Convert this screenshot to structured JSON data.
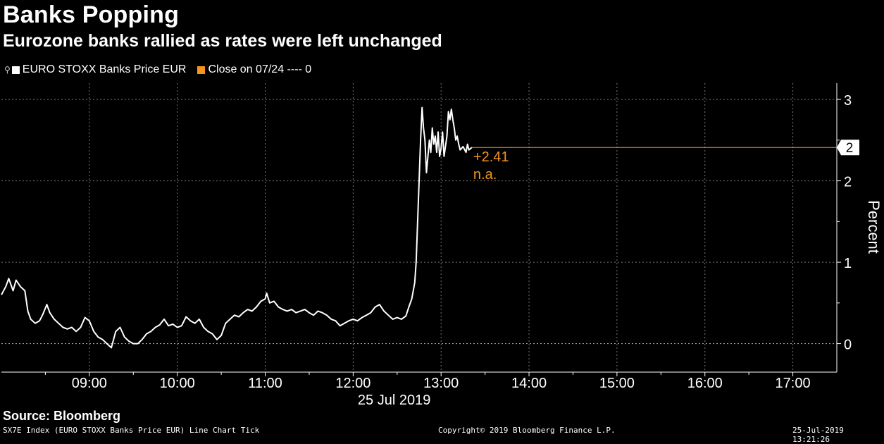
{
  "header": {
    "title": "Banks Popping",
    "subtitle": "Eurozone banks rallied as rates were left unchanged"
  },
  "legend": {
    "items": [
      {
        "label": "EURO STOXX Banks Price EUR",
        "color": "#ffffff"
      },
      {
        "label": "Close on 07/24 ---- 0",
        "color": "#f7941d"
      }
    ]
  },
  "footer": {
    "source": "Source: Bloomberg",
    "left": "SX7E Index (EURO STOXX Banks Price EUR) Line Chart  Tick",
    "center": "Copyright© 2019 Bloomberg Finance L.P.",
    "right": "25-Jul-2019 13:21:26"
  },
  "chart_data": {
    "type": "line",
    "ylabel": "Percent",
    "xlabel": "25 Jul 2019",
    "ylim": [
      -0.35,
      3.2
    ],
    "y_ticks": [
      "0",
      "1",
      "2",
      "3"
    ],
    "x_range": [
      "08:00",
      "17:30"
    ],
    "x_ticks": [
      "09:00",
      "10:00",
      "11:00",
      "12:00",
      "13:00",
      "14:00",
      "15:00",
      "16:00",
      "17:00"
    ],
    "grid": true,
    "legend_position": "top-left",
    "last_value_label": "+2.41",
    "last_value_badge": "2",
    "na_label": "n.a.",
    "series": [
      {
        "name": "EURO STOXX Banks Price EUR",
        "color": "#ffffff",
        "points": [
          [
            "08:00",
            0.6
          ],
          [
            "08:03",
            0.7
          ],
          [
            "08:05",
            0.8
          ],
          [
            "08:08",
            0.65
          ],
          [
            "08:10",
            0.78
          ],
          [
            "08:13",
            0.7
          ],
          [
            "08:16",
            0.65
          ],
          [
            "08:18",
            0.4
          ],
          [
            "08:20",
            0.3
          ],
          [
            "08:23",
            0.25
          ],
          [
            "08:26",
            0.28
          ],
          [
            "08:28",
            0.35
          ],
          [
            "08:31",
            0.48
          ],
          [
            "08:33",
            0.38
          ],
          [
            "08:36",
            0.3
          ],
          [
            "08:39",
            0.25
          ],
          [
            "08:42",
            0.2
          ],
          [
            "08:45",
            0.18
          ],
          [
            "08:48",
            0.2
          ],
          [
            "08:51",
            0.15
          ],
          [
            "08:54",
            0.2
          ],
          [
            "08:57",
            0.32
          ],
          [
            "09:00",
            0.28
          ],
          [
            "09:03",
            0.15
          ],
          [
            "09:06",
            0.08
          ],
          [
            "09:09",
            0.05
          ],
          [
            "09:12",
            0.0
          ],
          [
            "09:15",
            -0.05
          ],
          [
            "09:18",
            0.15
          ],
          [
            "09:21",
            0.2
          ],
          [
            "09:24",
            0.08
          ],
          [
            "09:27",
            0.03
          ],
          [
            "09:30",
            0.0
          ],
          [
            "09:33",
            0.0
          ],
          [
            "09:36",
            0.05
          ],
          [
            "09:39",
            0.12
          ],
          [
            "09:42",
            0.15
          ],
          [
            "09:45",
            0.2
          ],
          [
            "09:48",
            0.23
          ],
          [
            "09:51",
            0.3
          ],
          [
            "09:54",
            0.22
          ],
          [
            "09:57",
            0.24
          ],
          [
            "10:00",
            0.2
          ],
          [
            "10:03",
            0.22
          ],
          [
            "10:06",
            0.33
          ],
          [
            "10:09",
            0.28
          ],
          [
            "10:12",
            0.25
          ],
          [
            "10:15",
            0.3
          ],
          [
            "10:18",
            0.2
          ],
          [
            "10:21",
            0.15
          ],
          [
            "10:24",
            0.12
          ],
          [
            "10:27",
            0.05
          ],
          [
            "10:30",
            0.1
          ],
          [
            "10:33",
            0.25
          ],
          [
            "10:36",
            0.3
          ],
          [
            "10:39",
            0.35
          ],
          [
            "10:42",
            0.33
          ],
          [
            "10:45",
            0.38
          ],
          [
            "10:48",
            0.42
          ],
          [
            "10:51",
            0.4
          ],
          [
            "10:54",
            0.45
          ],
          [
            "10:57",
            0.52
          ],
          [
            "11:00",
            0.55
          ],
          [
            "11:01",
            0.62
          ],
          [
            "11:03",
            0.5
          ],
          [
            "11:06",
            0.52
          ],
          [
            "11:09",
            0.45
          ],
          [
            "11:12",
            0.42
          ],
          [
            "11:15",
            0.4
          ],
          [
            "11:18",
            0.42
          ],
          [
            "11:21",
            0.38
          ],
          [
            "11:24",
            0.4
          ],
          [
            "11:27",
            0.42
          ],
          [
            "11:30",
            0.38
          ],
          [
            "11:33",
            0.35
          ],
          [
            "11:36",
            0.4
          ],
          [
            "11:39",
            0.38
          ],
          [
            "11:42",
            0.35
          ],
          [
            "11:45",
            0.3
          ],
          [
            "11:48",
            0.28
          ],
          [
            "11:51",
            0.22
          ],
          [
            "11:54",
            0.25
          ],
          [
            "11:57",
            0.28
          ],
          [
            "12:00",
            0.3
          ],
          [
            "12:03",
            0.28
          ],
          [
            "12:06",
            0.32
          ],
          [
            "12:09",
            0.35
          ],
          [
            "12:12",
            0.38
          ],
          [
            "12:15",
            0.45
          ],
          [
            "12:18",
            0.48
          ],
          [
            "12:21",
            0.4
          ],
          [
            "12:24",
            0.35
          ],
          [
            "12:27",
            0.3
          ],
          [
            "12:30",
            0.32
          ],
          [
            "12:33",
            0.3
          ],
          [
            "12:36",
            0.34
          ],
          [
            "12:38",
            0.45
          ],
          [
            "12:40",
            0.55
          ],
          [
            "12:42",
            0.75
          ],
          [
            "12:43",
            1.0
          ],
          [
            "12:44",
            1.5
          ],
          [
            "12:45",
            2.0
          ],
          [
            "12:46",
            2.5
          ],
          [
            "12:47",
            2.9
          ],
          [
            "12:48",
            2.65
          ],
          [
            "12:49",
            2.5
          ],
          [
            "12:50",
            2.1
          ],
          [
            "12:51",
            2.3
          ],
          [
            "12:52",
            2.5
          ],
          [
            "12:53",
            2.35
          ],
          [
            "12:54",
            2.65
          ],
          [
            "12:55",
            2.45
          ],
          [
            "12:56",
            2.55
          ],
          [
            "12:57",
            2.35
          ],
          [
            "12:58",
            2.6
          ],
          [
            "12:59",
            2.3
          ],
          [
            "13:00",
            2.4
          ],
          [
            "13:01",
            2.6
          ],
          [
            "13:02",
            2.3
          ],
          [
            "13:04",
            2.55
          ],
          [
            "13:05",
            2.85
          ],
          [
            "13:06",
            2.75
          ],
          [
            "13:07",
            2.88
          ],
          [
            "13:08",
            2.75
          ],
          [
            "13:09",
            2.65
          ],
          [
            "13:10",
            2.5
          ],
          [
            "13:11",
            2.55
          ],
          [
            "13:12",
            2.45
          ],
          [
            "13:13",
            2.38
          ],
          [
            "13:15",
            2.42
          ],
          [
            "13:17",
            2.35
          ],
          [
            "13:18",
            2.45
          ],
          [
            "13:19",
            2.38
          ],
          [
            "13:21",
            2.41
          ]
        ]
      },
      {
        "name": "Close on 07/24 ---- 0",
        "color": "#f7941d",
        "constant": 0
      }
    ]
  }
}
